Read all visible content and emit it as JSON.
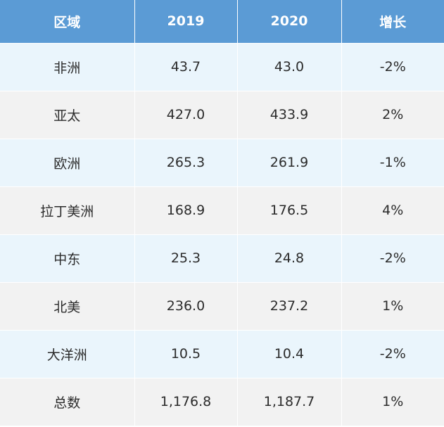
{
  "colors": {
    "header_bg": "#5b9bd5",
    "header_text": "#ffffff",
    "row_odd_bg": "#eaf5fc",
    "row_even_bg": "#f2f2f2",
    "cell_text": "#2b2b2b"
  },
  "table": {
    "headers": [
      "区域",
      "2019",
      "2020",
      "增长"
    ],
    "rows": [
      {
        "region": "非洲",
        "y2019": "43.7",
        "y2020": "43.0",
        "growth": "-2%"
      },
      {
        "region": "亚太",
        "y2019": "427.0",
        "y2020": "433.9",
        "growth": "2%"
      },
      {
        "region": "欧洲",
        "y2019": "265.3",
        "y2020": "261.9",
        "growth": "-1%"
      },
      {
        "region": "拉丁美洲",
        "y2019": "168.9",
        "y2020": "176.5",
        "growth": "4%"
      },
      {
        "region": "中东",
        "y2019": "25.3",
        "y2020": "24.8",
        "growth": "-2%"
      },
      {
        "region": "北美",
        "y2019": "236.0",
        "y2020": "237.2",
        "growth": "1%"
      },
      {
        "region": "大洋洲",
        "y2019": "10.5",
        "y2020": "10.4",
        "growth": "-2%"
      },
      {
        "region": "总数",
        "y2019": "1,176.8",
        "y2020": "1,187.7",
        "growth": "1%"
      }
    ]
  }
}
